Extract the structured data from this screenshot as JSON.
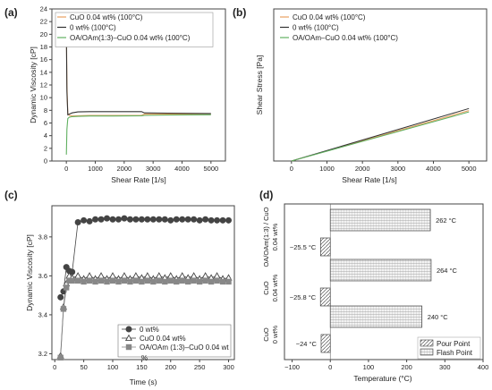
{
  "chart_data": [
    {
      "panel": "(a)",
      "type": "line",
      "xlabel": "Shear Rate [1/s]",
      "ylabel": "Dynamic Viscosity [cP]",
      "xlim": [
        -500,
        5500
      ],
      "ylim": [
        0,
        24
      ],
      "xticks": [
        0,
        1000,
        2000,
        3000,
        4000,
        5000
      ],
      "yticks": [
        0,
        2,
        4,
        6,
        8,
        10,
        12,
        14,
        16,
        18,
        20,
        22,
        24
      ],
      "legend_position": "top-left",
      "series": [
        {
          "name": "CuO 0.04 wt% (100°C)",
          "color": "#e8a060",
          "x": [
            0,
            20,
            50,
            100,
            200,
            400,
            800,
            1500,
            2600,
            2700,
            3500,
            5000
          ],
          "y": [
            22,
            12,
            7.5,
            7.2,
            7.1,
            7.15,
            7.2,
            7.2,
            7.2,
            7.4,
            7.4,
            7.45
          ]
        },
        {
          "name": "0 wt% (100°C)",
          "color": "#333333",
          "x": [
            0,
            20,
            50,
            100,
            200,
            400,
            800,
            1500,
            2600,
            2700,
            3500,
            5000
          ],
          "y": [
            20,
            11,
            7.3,
            7.4,
            7.6,
            7.75,
            7.8,
            7.8,
            7.8,
            7.6,
            7.55,
            7.5
          ]
        },
        {
          "name": "OA/OAm(1:3)–CuO 0.04 wt% (100°C)",
          "color": "#60b060",
          "x": [
            0,
            20,
            50,
            100,
            200,
            400,
            800,
            1500,
            2600,
            2700,
            3500,
            5000
          ],
          "y": [
            1,
            5,
            6.7,
            6.9,
            7.0,
            7.05,
            7.1,
            7.1,
            7.15,
            7.2,
            7.25,
            7.3
          ]
        }
      ]
    },
    {
      "panel": "(b)",
      "type": "line",
      "xlabel": "Shear Rate [1/s]",
      "ylabel": "Shear Stress [Pa]",
      "xlim": [
        -500,
        5500
      ],
      "ylim": [
        0,
        110
      ],
      "xticks": [
        0,
        1000,
        2000,
        3000,
        4000,
        5000
      ],
      "yticks": [],
      "legend_position": "top-left",
      "series": [
        {
          "name": "CuO 0.04 wt% (100°C)",
          "color": "#e8a060",
          "x": [
            0,
            5000
          ],
          "y": [
            0,
            36.5
          ]
        },
        {
          "name": "0 wt% (100°C)",
          "color": "#333333",
          "x": [
            0,
            5000
          ],
          "y": [
            0,
            38
          ]
        },
        {
          "name": "OA/OAm–CuO 0.04 wt% (100°C)",
          "color": "#60b060",
          "x": [
            0,
            5000
          ],
          "y": [
            0,
            35.5
          ]
        }
      ]
    },
    {
      "panel": "(c)",
      "type": "line",
      "xlabel": "Time (s)",
      "ylabel": "Dynamic Viscosity [cP]",
      "xlim": [
        -5,
        310
      ],
      "ylim": [
        3.17,
        3.96
      ],
      "xticks": [
        0,
        50,
        100,
        150,
        200,
        250,
        300
      ],
      "yticks": [
        3.2,
        3.4,
        3.6,
        3.8
      ],
      "legend_position": "bottom-right",
      "series": [
        {
          "name": "0 wt%",
          "color": "#444444",
          "marker": "circle",
          "x": [
            10,
            15,
            20,
            25,
            30,
            40,
            50,
            60,
            70,
            80,
            90,
            100,
            110,
            120,
            130,
            140,
            150,
            160,
            170,
            180,
            190,
            200,
            210,
            220,
            230,
            240,
            250,
            260,
            270,
            280,
            290,
            300
          ],
          "y": [
            3.49,
            3.52,
            3.645,
            3.625,
            3.62,
            3.875,
            3.885,
            3.88,
            3.89,
            3.89,
            3.895,
            3.89,
            3.89,
            3.895,
            3.89,
            3.89,
            3.89,
            3.89,
            3.89,
            3.89,
            3.89,
            3.885,
            3.89,
            3.89,
            3.89,
            3.89,
            3.885,
            3.89,
            3.885,
            3.885,
            3.885,
            3.885
          ]
        },
        {
          "name": "CuO 0.04 wt%",
          "color": "#444444",
          "marker": "triangle",
          "x": [
            10,
            15,
            20,
            25,
            30,
            40,
            50,
            60,
            70,
            80,
            90,
            100,
            110,
            120,
            130,
            140,
            150,
            160,
            170,
            180,
            190,
            200,
            210,
            220,
            230,
            240,
            250,
            260,
            270,
            280,
            290,
            300
          ],
          "y": [
            3.19,
            3.44,
            3.56,
            3.6,
            3.59,
            3.6,
            3.585,
            3.6,
            3.585,
            3.6,
            3.585,
            3.6,
            3.585,
            3.6,
            3.585,
            3.6,
            3.59,
            3.6,
            3.585,
            3.6,
            3.59,
            3.6,
            3.585,
            3.6,
            3.59,
            3.6,
            3.585,
            3.6,
            3.59,
            3.6,
            3.585,
            3.59
          ]
        },
        {
          "name": "OA/OAm (1:3)–CuO 0.04 wt",
          "color": "#888888",
          "marker": "square",
          "x": [
            10,
            15,
            20,
            25,
            30,
            40,
            50,
            60,
            70,
            80,
            90,
            100,
            110,
            120,
            130,
            140,
            150,
            160,
            170,
            180,
            190,
            200,
            210,
            220,
            230,
            240,
            250,
            260,
            270,
            280,
            290,
            300
          ],
          "y": [
            3.18,
            3.43,
            3.54,
            3.575,
            3.575,
            3.575,
            3.57,
            3.575,
            3.57,
            3.575,
            3.57,
            3.575,
            3.57,
            3.575,
            3.57,
            3.575,
            3.57,
            3.575,
            3.57,
            3.575,
            3.57,
            3.575,
            3.57,
            3.575,
            3.57,
            3.575,
            3.57,
            3.575,
            3.57,
            3.575,
            3.57,
            3.57
          ]
        }
      ],
      "legend_extra": "%"
    },
    {
      "panel": "(d)",
      "type": "bar",
      "orientation": "horizontal",
      "xlabel": "Temperature (°C)",
      "xlim": [
        -120,
        400
      ],
      "xticks": [
        -100,
        0,
        100,
        200,
        300,
        400
      ],
      "categories": [
        {
          "line1": "OA/OAm(1:3) / CuO",
          "line2": "0.04 wt%"
        },
        {
          "line1": "CuO",
          "line2": "0.04 wt%"
        },
        {
          "line1": "CuO",
          "line2": "0 wt%"
        }
      ],
      "series": [
        {
          "name": "Pour Point",
          "values": [
            -25.5,
            -25.8,
            -24
          ],
          "labels": [
            "−25.5 °C",
            "−25.8 °C",
            "−24 °C"
          ]
        },
        {
          "name": "Flash Point",
          "values": [
            262,
            264,
            240
          ],
          "labels": [
            "262 °C",
            "264 °C",
            "240 °C"
          ]
        }
      ],
      "legend_position": "bottom-right"
    }
  ]
}
